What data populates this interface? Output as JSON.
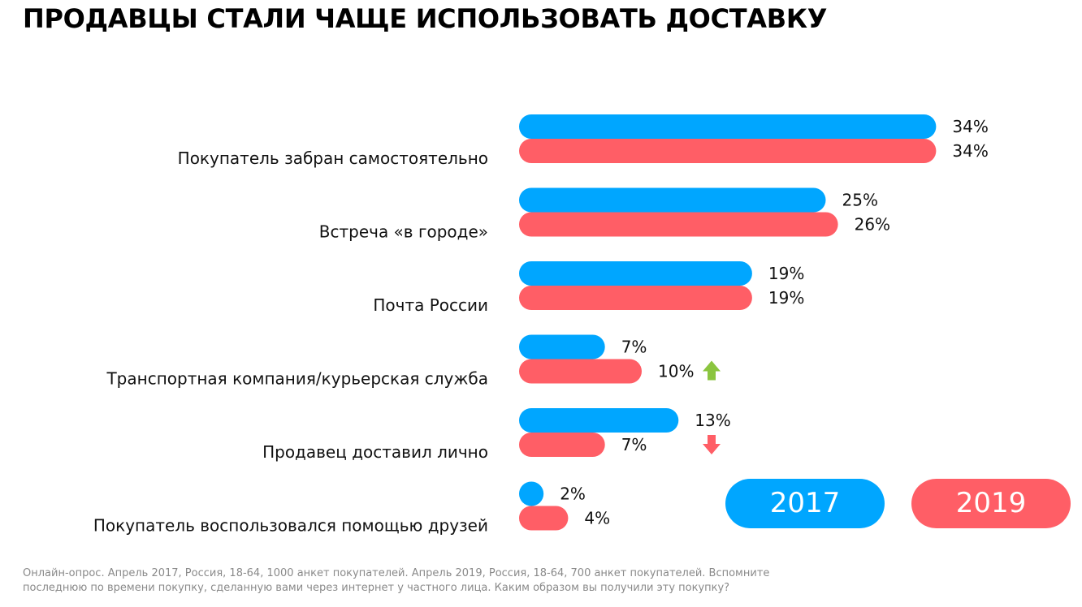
{
  "title": "ПРОДАВЦЫ СТАЛИ ЧАЩЕ ИСПОЛЬЗОВАТЬ ДОСТАВКУ",
  "colors": {
    "series_2017": "#00a6ff",
    "series_2019": "#ff5e66",
    "arrow_up": "#8bc53f",
    "arrow_down": "#ff5e66"
  },
  "chart_data": {
    "type": "bar",
    "orientation": "horizontal",
    "categories": [
      "Покупатель забран самостоятельно",
      "Встреча «в городе»",
      "Почта России",
      "Транспортная компания/курьерская служба",
      "Продавец доставил лично",
      "Покупатель воспользовался помощью друзей"
    ],
    "series": [
      {
        "name": "2017",
        "values": [
          34,
          25,
          19,
          7,
          13,
          2
        ],
        "labels": [
          "34%",
          "25%",
          "19%",
          "7%",
          "13%",
          "2%"
        ]
      },
      {
        "name": "2019",
        "values": [
          34,
          26,
          19,
          10,
          7,
          4
        ],
        "labels": [
          "34%",
          "26%",
          "19%",
          "10%",
          "7%",
          "4%"
        ]
      }
    ],
    "trend_indicators": [
      {
        "category": "Транспортная компания/курьерская служба",
        "direction": "up",
        "icon": "arrow-up-icon"
      },
      {
        "category": "Продавец доставил лично",
        "direction": "down",
        "icon": "arrow-down-icon"
      }
    ],
    "legend_placement": "bottom-right",
    "grid": false
  },
  "legend": {
    "label_2017": "2017",
    "label_2019": "2019"
  },
  "footnote": "Онлайн-опрос. Апрель 2017, Россия, 18-64, 1000 анкет покупателей. Апрель 2019, Россия, 18-64, 700 анкет покупателей. Вспомните последнюю по времени покупку, сделанную вами через интернет у частного лица. Каким образом вы получили эту покупку?"
}
